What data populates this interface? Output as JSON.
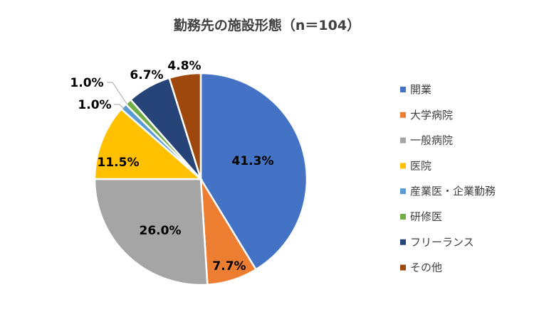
{
  "chart_data": {
    "type": "pie",
    "title": "勤務先の施設形態（n＝104）",
    "categories": [
      "開業",
      "大学病院",
      "一般病院",
      "医院",
      "産業医・企業勤務",
      "研修医",
      "フリーランス",
      "その他"
    ],
    "values": [
      41.3,
      7.7,
      26.0,
      11.5,
      1.0,
      1.0,
      6.7,
      4.8
    ],
    "labels": [
      "41.3%",
      "7.7%",
      "26.0%",
      "11.5%",
      "1.0%",
      "1.0%",
      "6.7%",
      "4.8%"
    ],
    "colors": [
      "#4472C4",
      "#ED7D31",
      "#A5A5A5",
      "#FFC000",
      "#5B9BD5",
      "#70AD47",
      "#264478",
      "#9E480E"
    ],
    "start_angle_deg": 0,
    "direction": "clockwise",
    "legend_position": "right"
  }
}
